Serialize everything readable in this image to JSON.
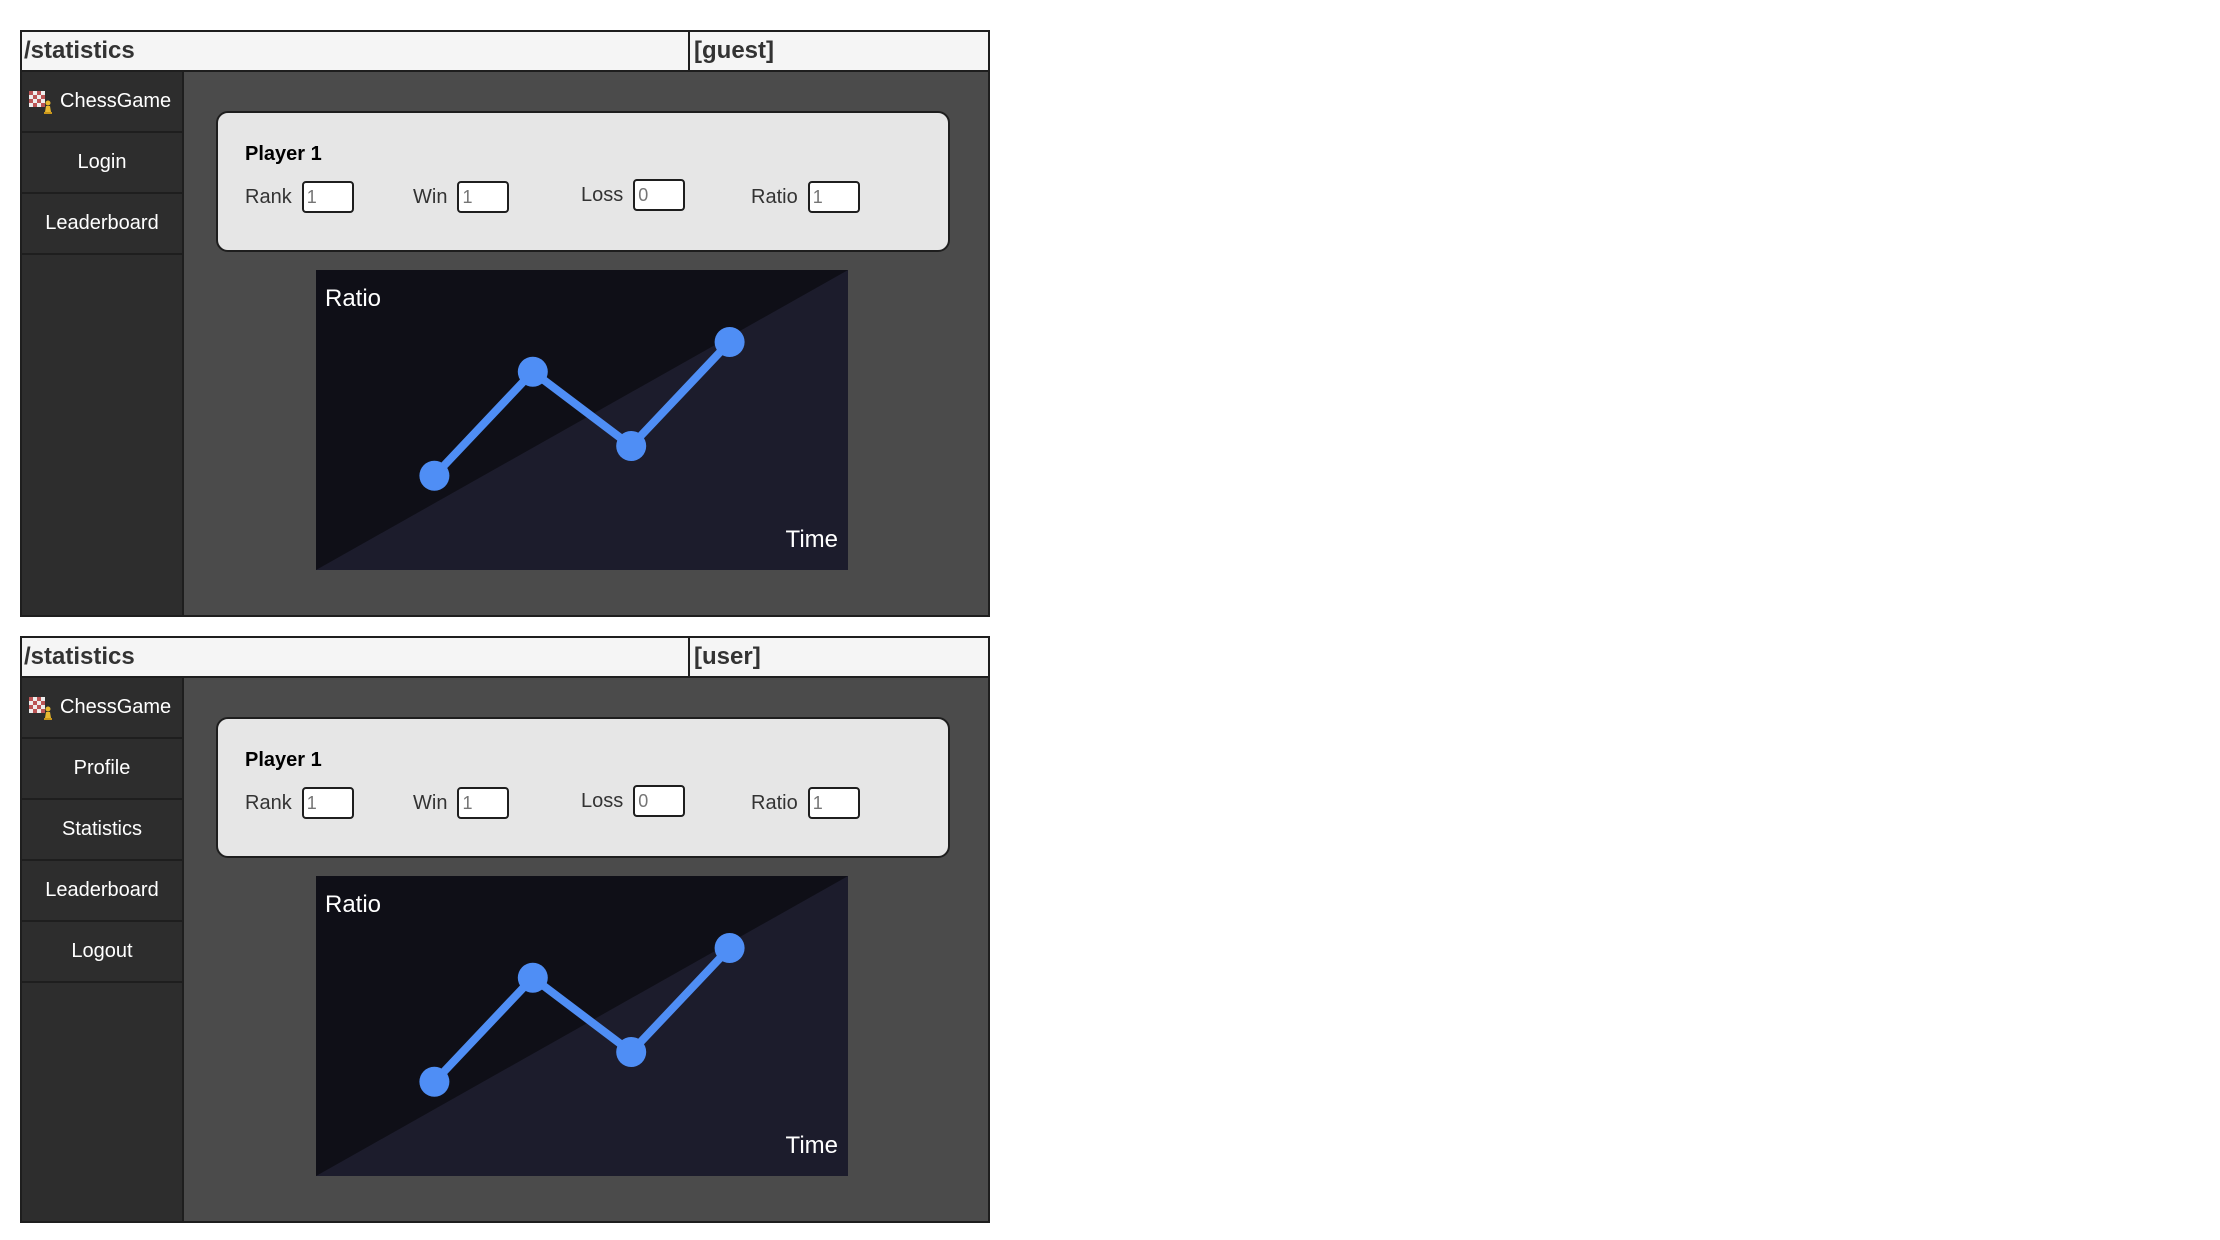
{
  "screens": [
    {
      "route": "/statistics",
      "role": "[guest]",
      "brand": "ChessGame",
      "nav": [
        "Login",
        "Leaderboard"
      ],
      "player": {
        "name": "Player 1",
        "rank_label": "Rank",
        "rank_value": "1",
        "win_label": "Win",
        "win_value": "1",
        "loss_label": "Loss",
        "loss_value": "0",
        "ratio_label": "Ratio",
        "ratio_value": "1"
      },
      "chart_data": {
        "type": "line",
        "ylabel": "Ratio",
        "xlabel": "Time",
        "x": [
          1,
          2,
          3,
          4
        ],
        "values": [
          1.0,
          2.4,
          1.4,
          2.8
        ]
      }
    },
    {
      "route": "/statistics",
      "role": "[user]",
      "brand": "ChessGame",
      "nav": [
        "Profile",
        "Statistics",
        "Leaderboard",
        "Logout"
      ],
      "player": {
        "name": "Player 1",
        "rank_label": "Rank",
        "rank_value": "1",
        "win_label": "Win",
        "win_value": "1",
        "loss_label": "Loss",
        "loss_value": "0",
        "ratio_label": "Ratio",
        "ratio_value": "1"
      },
      "chart_data": {
        "type": "line",
        "ylabel": "Ratio",
        "xlabel": "Time",
        "x": [
          1,
          2,
          3,
          4
        ],
        "values": [
          1.0,
          2.4,
          1.4,
          2.8
        ]
      }
    }
  ],
  "colors": {
    "line": "#4f8ef5",
    "chart_bg": "#0f0f17",
    "chart_triangle": "#1c1c2c"
  }
}
